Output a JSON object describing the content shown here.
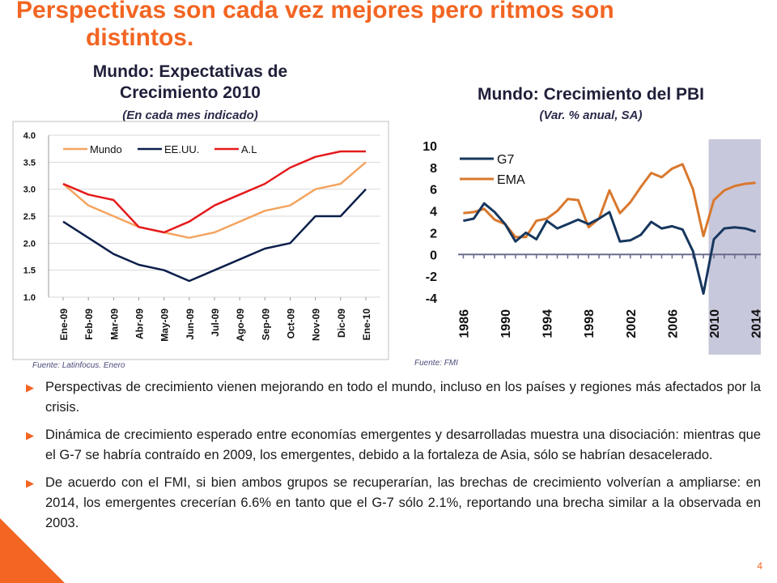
{
  "slide": {
    "title_line1": "Perspectivas son cada vez mejores pero ritmos son",
    "title_line2": "distintos.",
    "page_number": "4"
  },
  "left_chart": {
    "title_line1": "Mundo: Expectativas de",
    "title_line2": "Crecimiento 2010",
    "subtitle": "(En cada mes indicado)",
    "source": "Fuente: Latinfocus. Enero"
  },
  "right_chart": {
    "title": "Mundo: Crecimiento del PBI",
    "subtitle": "(Var. % anual, SA)",
    "source": "Fuente: FMI"
  },
  "bullets": [
    "Perspectivas de crecimiento vienen mejorando en todo el mundo, incluso en los países y regiones más afectados por la crisis.",
    "Dinámica de crecimiento esperado entre economías emergentes y desarrolladas muestra una disociación: mientras que el G-7 se habría contraído en 2009, los emergentes, debido a la fortaleza de Asia, sólo se habrían desacelerado.",
    "De acuerdo con el FMI, si bien ambos grupos se recuperarían,  las brechas de crecimiento volverían a ampliarse: en 2014, los emergentes crecerían 6.6% en tanto que el G-7 sólo 2.1%, reportando una brecha similar a la observada en 2003."
  ],
  "chart_data": [
    {
      "type": "line",
      "title": "Mundo: Expectativas de Crecimiento 2010",
      "subtitle": "(En cada mes indicado)",
      "categories": [
        "Ene-09",
        "Feb-09",
        "Mar-09",
        "Abr-09",
        "May-09",
        "Jun-09",
        "Jul-09",
        "Ago-09",
        "Sep-09",
        "Oct-09",
        "Nov-09",
        "Dic-09",
        "Ene-10"
      ],
      "ylim": [
        1.0,
        4.0
      ],
      "yticks": [
        "1.0",
        "1.5",
        "2.0",
        "2.5",
        "3.0",
        "3.5",
        "4.0"
      ],
      "grid": true,
      "legend_position": "top",
      "series": [
        {
          "name": "Mundo",
          "color": "#f4a460",
          "values": [
            3.1,
            2.7,
            2.5,
            2.3,
            2.2,
            2.1,
            2.2,
            2.4,
            2.6,
            2.7,
            3.0,
            3.1,
            3.5
          ]
        },
        {
          "name": "EE.UU.",
          "color": "#0b1f4b",
          "values": [
            2.4,
            2.1,
            1.8,
            1.6,
            1.5,
            1.3,
            1.5,
            1.7,
            1.9,
            2.0,
            2.5,
            2.5,
            3.0
          ]
        },
        {
          "name": "A.L",
          "color": "#e41a1c",
          "values": [
            3.1,
            2.9,
            2.8,
            2.3,
            2.2,
            2.4,
            2.7,
            2.9,
            3.1,
            3.4,
            3.6,
            3.7,
            3.7
          ]
        }
      ]
    },
    {
      "type": "line",
      "title": "Mundo: Crecimiento del PBI",
      "subtitle": "(Var. % anual, SA)",
      "x": [
        1986,
        1987,
        1988,
        1989,
        1990,
        1991,
        1992,
        1993,
        1994,
        1995,
        1996,
        1997,
        1998,
        1999,
        2000,
        2001,
        2002,
        2003,
        2004,
        2005,
        2006,
        2007,
        2008,
        2009,
        2010,
        2011,
        2012,
        2013,
        2014
      ],
      "xticks": [
        "1986",
        "1990",
        "1994",
        "1998",
        "2002",
        "2006",
        "2010",
        "2014"
      ],
      "ylim": [
        -4,
        10
      ],
      "yticks": [
        "-4",
        "-2",
        "0",
        "2",
        "4",
        "6",
        "8",
        "10"
      ],
      "shaded_region": [
        2009.5,
        2014.5
      ],
      "legend_position": "top-left",
      "series": [
        {
          "name": "G7",
          "color": "#17375e",
          "values": [
            3.1,
            3.3,
            4.7,
            3.9,
            2.8,
            1.2,
            2.0,
            1.4,
            3.1,
            2.4,
            2.8,
            3.2,
            2.8,
            3.3,
            3.9,
            1.2,
            1.3,
            1.8,
            3.0,
            2.4,
            2.6,
            2.3,
            0.3,
            -3.6,
            1.4,
            2.4,
            2.5,
            2.4,
            2.1
          ]
        },
        {
          "name": "EMA",
          "color": "#d9782d",
          "values": [
            3.8,
            3.9,
            4.2,
            3.2,
            2.8,
            1.6,
            1.6,
            3.1,
            3.3,
            4.0,
            5.1,
            5.0,
            2.5,
            3.3,
            5.9,
            3.8,
            4.8,
            6.2,
            7.5,
            7.1,
            7.9,
            8.3,
            6.0,
            1.7,
            5.0,
            5.9,
            6.3,
            6.5,
            6.6
          ]
        }
      ]
    }
  ]
}
